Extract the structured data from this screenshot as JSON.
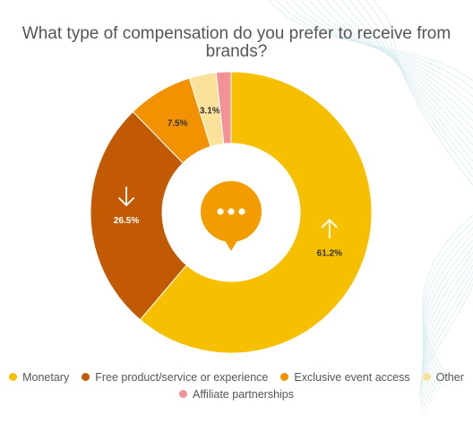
{
  "chart_data": {
    "type": "pie",
    "title": "What type of compensation do you prefer to receive from brands?",
    "series": [
      {
        "name": "Monetary",
        "value": 61.2,
        "label": "61.2%",
        "color": "#F6C000"
      },
      {
        "name": "Free product/service or experience",
        "value": 26.5,
        "label": "26.5%",
        "color": "#C25A04"
      },
      {
        "name": "Exclusive event access",
        "value": 7.5,
        "label": "7.5%",
        "color": "#F39200"
      },
      {
        "name": "Other",
        "value": 3.1,
        "label": "3.1%",
        "color": "#FBE29B"
      },
      {
        "name": "Affiliate partnerships",
        "value": 1.7,
        "label": "",
        "color": "#F29196"
      }
    ],
    "donut": true,
    "legend_position": "bottom",
    "center_icon": "chat-bubble-icon",
    "markers": {
      "Monetary": "arrow-up-icon",
      "Free product/service or experience": "arrow-down-icon"
    }
  }
}
